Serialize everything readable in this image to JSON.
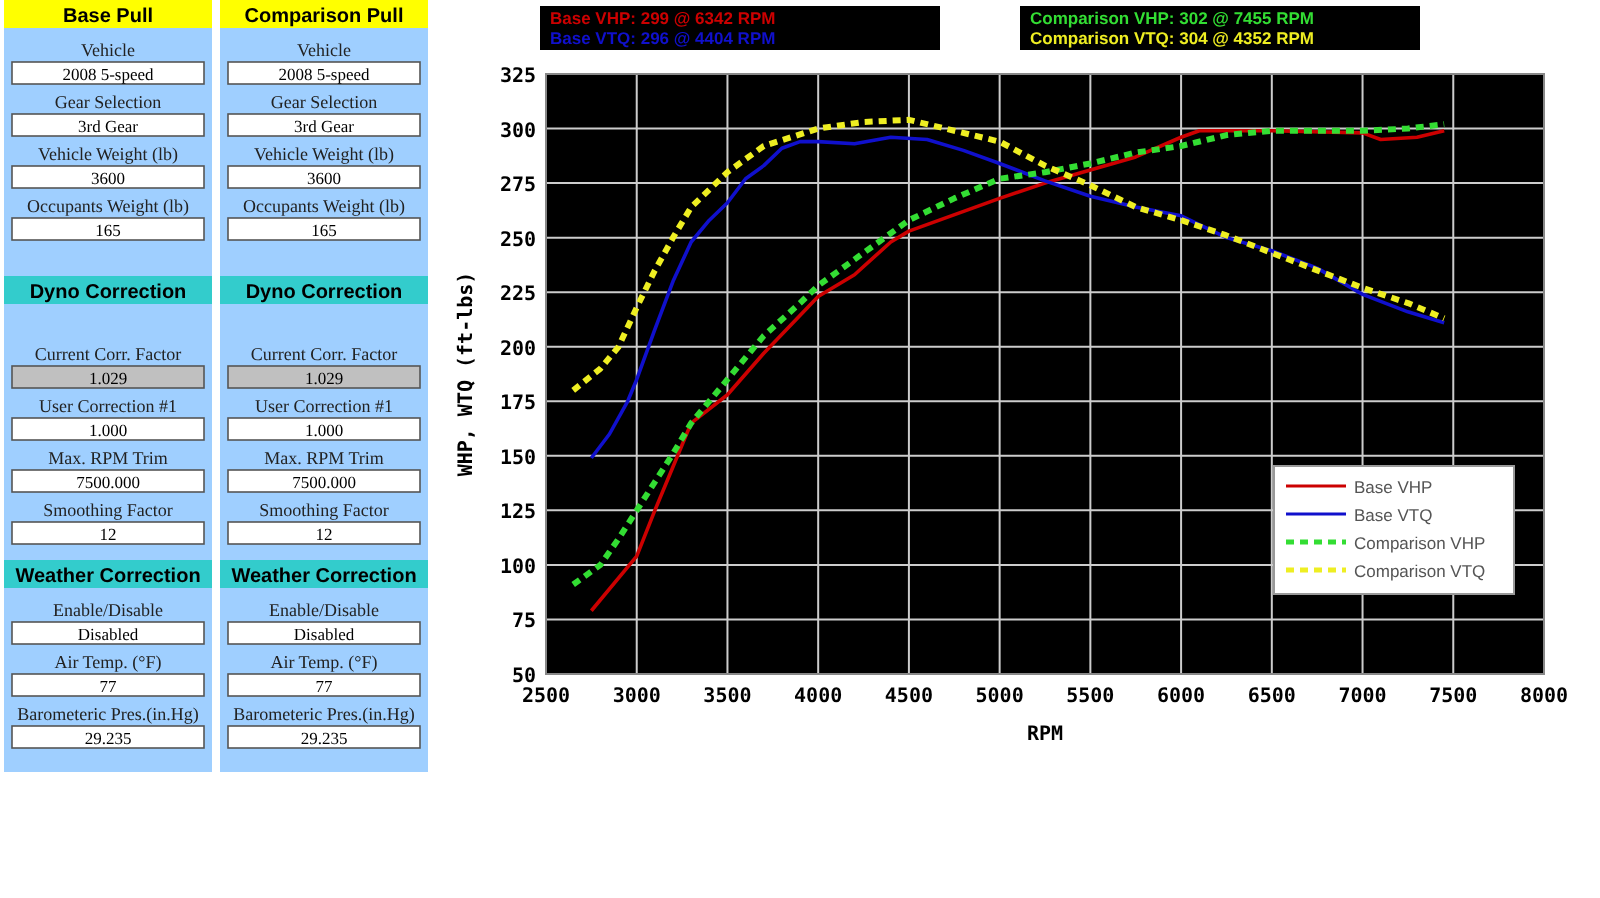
{
  "chart_data": [
    {
      "type": "line",
      "xlabel": "RPM",
      "ylabel": "WHP, WTQ (ft-lbs)",
      "xlim": [
        2500,
        8000
      ],
      "xticks": [
        2500,
        3000,
        3500,
        4000,
        4500,
        5000,
        5500,
        6000,
        6500,
        7000,
        7500,
        8000
      ],
      "ylim": [
        50,
        325
      ],
      "yticks": [
        50,
        75,
        100,
        125,
        150,
        175,
        200,
        225,
        250,
        275,
        300,
        325
      ],
      "grid": true,
      "legend": "bottom right",
      "annotations": [
        "Base VHP: 299 @ 6342 RPM",
        "Base VTQ: 296 @ 4404 RPM",
        "Comparison VHP: 302 @ 7455 RPM",
        "Comparison VTQ: 304 @ 4352 RPM"
      ],
      "series": [
        {
          "name": "Base VHP",
          "color": "#cc0000",
          "line_style": "solid",
          "x": [
            2750,
            3000,
            3100,
            3200,
            3300,
            3500,
            3700,
            4000,
            4200,
            4400,
            4500,
            5000,
            5250,
            5500,
            5750,
            6000,
            6100,
            6500,
            7000,
            7100,
            7300,
            7450
          ],
          "values": [
            79,
            104,
            125,
            145,
            165,
            178,
            197,
            223,
            233,
            248,
            253,
            268,
            275,
            281,
            287,
            296,
            299,
            299,
            298,
            295,
            296,
            299
          ]
        },
        {
          "name": "Base VTQ",
          "color": "#1010cc",
          "line_style": "solid",
          "x": [
            2750,
            2850,
            2950,
            3000,
            3100,
            3200,
            3300,
            3400,
            3500,
            3600,
            3700,
            3800,
            3900,
            4000,
            4200,
            4400,
            4600,
            4800,
            5000,
            5250,
            5500,
            5750,
            6000,
            6250,
            6500,
            6750,
            7000,
            7250,
            7450
          ],
          "values": [
            149,
            160,
            175,
            185,
            208,
            230,
            248,
            258,
            266,
            277,
            283,
            291,
            294,
            294,
            293,
            296,
            295,
            290,
            284,
            276,
            269,
            264,
            260,
            250,
            244,
            236,
            224,
            216,
            211
          ]
        },
        {
          "name": "Comparison VHP",
          "color": "#33dd33",
          "line_style": "dashed",
          "x": [
            2650,
            2800,
            2900,
            3000,
            3100,
            3200,
            3300,
            3500,
            3700,
            3900,
            4000,
            4250,
            4500,
            4750,
            5000,
            5250,
            5500,
            5750,
            6000,
            6250,
            6500,
            7000,
            7250,
            7450
          ],
          "values": [
            91,
            100,
            112,
            125,
            138,
            151,
            165,
            185,
            205,
            220,
            228,
            243,
            258,
            268,
            277,
            280,
            284,
            289,
            292,
            297,
            299,
            299,
            300,
            302
          ]
        },
        {
          "name": "Comparison VTQ",
          "color": "#eeee22",
          "line_style": "dashed",
          "x": [
            2650,
            2800,
            2900,
            3000,
            3100,
            3200,
            3300,
            3500,
            3700,
            4000,
            4250,
            4500,
            4750,
            5000,
            5250,
            5500,
            5750,
            6000,
            6250,
            6500,
            6750,
            7000,
            7250,
            7450
          ],
          "values": [
            180,
            190,
            200,
            218,
            235,
            250,
            264,
            280,
            292,
            300,
            303,
            304,
            299,
            294,
            283,
            274,
            264,
            258,
            251,
            243,
            235,
            227,
            220,
            213
          ]
        }
      ]
    },
    {
      "type": "other",
      "title": "Base Pull",
      "annotations": [
        "Vehicle",
        "2008 5-speed",
        "Gear Selection",
        "3rd Gear",
        "Vehicle Weight (lb)",
        "3600",
        "Occupants Weight (lb)",
        "165"
      ]
    },
    {
      "type": "other",
      "title": "Dyno Correction",
      "annotations": [
        "Current Corr. Factor",
        "1.029",
        "User Correction #1",
        "1.000",
        "Max. RPM Trim",
        "7500.000",
        "Smoothing Factor",
        "12"
      ]
    },
    {
      "type": "other",
      "title": "Weather Correction",
      "annotations": [
        "Enable/Disable",
        "Disabled",
        "Air Temp. (°F)",
        "77",
        "Barometeric Pres.(in.Hg)",
        "29.235"
      ]
    },
    {
      "type": "other",
      "title": "Comparison Pull",
      "annotations": [
        "Vehicle",
        "2008 5-speed",
        "Gear Selection",
        "3rd Gear",
        "Vehicle Weight (lb)",
        "3600",
        "Occupants Weight (lb)",
        "165"
      ]
    },
    {
      "type": "other",
      "title": "Dyno Correction",
      "annotations": [
        "Current Corr. Factor",
        "1.029",
        "User Correction #1",
        "1.000",
        "Max. RPM Trim",
        "7500.000",
        "Smoothing Factor",
        "12"
      ]
    },
    {
      "type": "other",
      "title": "Weather Correction",
      "annotations": [
        "Enable/Disable",
        "Disabled",
        "Air Temp. (°F)",
        "77",
        "Barometeric Pres.(in.Hg)",
        "29.235"
      ]
    }
  ]
}
